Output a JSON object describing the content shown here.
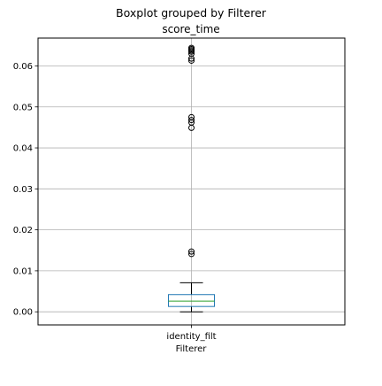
{
  "chart_data": {
    "type": "boxplot",
    "suptitle": "Boxplot grouped by Filterer",
    "title": "score_time",
    "xlabel": "Filterer",
    "ylabel": "",
    "categories": [
      "identity_filt"
    ],
    "ylim": [
      -0.0032,
      0.0668
    ],
    "yticks": [
      0.0,
      0.01,
      0.02,
      0.03,
      0.04,
      0.05,
      0.06
    ],
    "ytick_labels": [
      "0.00",
      "0.01",
      "0.02",
      "0.03",
      "0.04",
      "0.05",
      "0.06"
    ],
    "grid": true,
    "boxes": [
      {
        "category": "identity_filt",
        "whisker_low": 0.0,
        "q1": 0.0013,
        "median": 0.0026,
        "q3": 0.0042,
        "whisker_high": 0.0071,
        "fliers": [
          0.0141,
          0.0147,
          0.0449,
          0.0462,
          0.0468,
          0.0475,
          0.0613,
          0.0618,
          0.063,
          0.0635,
          0.0638,
          0.0641,
          0.0644
        ]
      }
    ],
    "colors": {
      "box": "#1f77b4",
      "median": "#2ca02c",
      "whisker": "#000000",
      "grid": "#b0b0b0"
    }
  }
}
